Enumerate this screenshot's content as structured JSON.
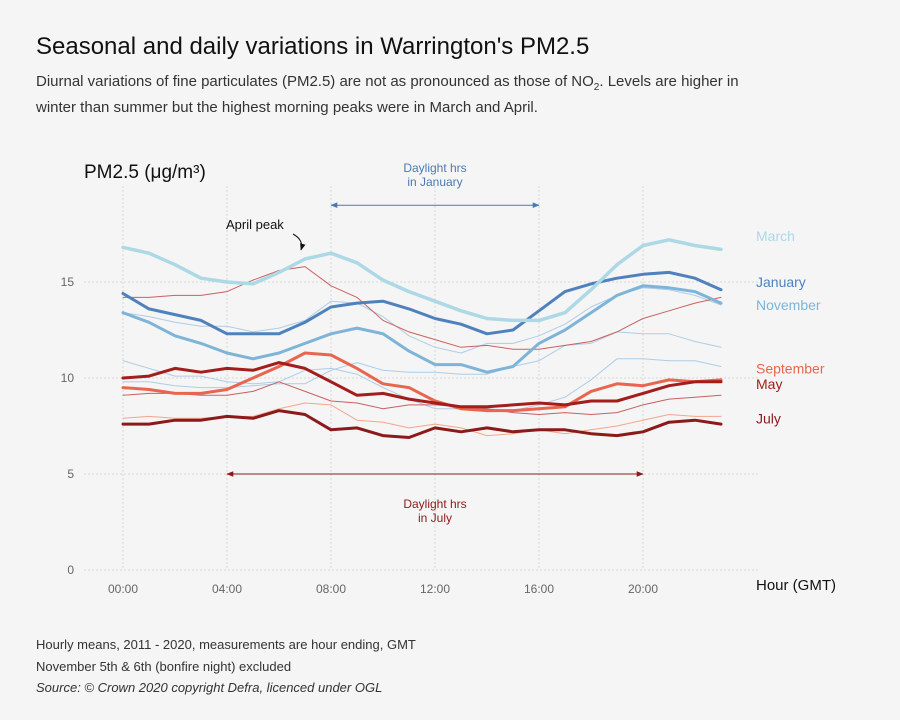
{
  "header": {
    "title": "Seasonal and daily variations in Warrington's PM2.5",
    "subtitle_part1": "Diurnal variations of fine particulates (PM2.5) are not as pronounced as those of NO",
    "subtitle_sub": "2",
    "subtitle_part2": ". Levels are higher in winter than summer but the highest morning peaks were in March and April."
  },
  "footer": {
    "line1": "Hourly means, 2011 - 2020, measurements are hour ending, GMT",
    "line2": "November 5th & 6th (bonfire night) excluded",
    "line3": "Source: © Crown 2020 copyright Defra,  licenced under OGL"
  },
  "chart_data": {
    "type": "line",
    "ylabel": "PM2.5 (μg/m³)",
    "xlabel": "Hour (GMT)",
    "ylim": [
      0,
      20
    ],
    "xlim": [
      -1.5,
      24.5
    ],
    "xticks": [
      0,
      4,
      8,
      12,
      16,
      20
    ],
    "xtick_labels": [
      "00:00",
      "04:00",
      "08:00",
      "12:00",
      "16:00",
      "20:00"
    ],
    "yticks": [
      0,
      5,
      10,
      15
    ],
    "grid": true,
    "x": [
      0,
      1,
      2,
      3,
      4,
      5,
      6,
      7,
      8,
      9,
      10,
      11,
      12,
      13,
      14,
      15,
      16,
      17,
      18,
      19,
      20,
      21,
      22,
      23
    ],
    "series": [
      {
        "name": "",
        "color": "#aecde6",
        "width": 1,
        "values": [
          13.4,
          13.2,
          12.9,
          12.7,
          12.7,
          12.4,
          12.6,
          13.0,
          14.0,
          13.9,
          13.2,
          12.2,
          11.6,
          11.3,
          11.8,
          11.8,
          12.2,
          12.8,
          13.7,
          14.3,
          14.7,
          14.6,
          14.3,
          13.8
        ]
      },
      {
        "name": "",
        "color": "#aecde6",
        "width": 1,
        "values": [
          9.8,
          9.8,
          9.6,
          9.5,
          9.5,
          9.6,
          9.7,
          9.7,
          10.4,
          10.8,
          10.4,
          10.3,
          10.3,
          10.2,
          10.2,
          10.6,
          10.9,
          11.7,
          11.8,
          12.4,
          12.3,
          12.3,
          11.9,
          11.6
        ]
      },
      {
        "name": "",
        "color": "#aecde6",
        "width": 1,
        "values": [
          10.9,
          10.5,
          10.1,
          10.1,
          9.8,
          9.7,
          9.8,
          10.4,
          10.5,
          10.2,
          9.5,
          8.9,
          8.4,
          8.4,
          8.4,
          8.3,
          8.6,
          9.0,
          9.9,
          11.0,
          11.0,
          10.9,
          10.9,
          10.6
        ]
      },
      {
        "name": "",
        "color": "#c96060",
        "width": 1,
        "values": [
          14.2,
          14.2,
          14.3,
          14.3,
          14.5,
          15.1,
          15.6,
          15.8,
          14.8,
          14.2,
          13.0,
          12.4,
          12.0,
          11.6,
          11.7,
          11.5,
          11.5,
          11.7,
          11.9,
          12.4,
          13.1,
          13.5,
          13.9,
          14.2
        ]
      },
      {
        "name": "",
        "color": "#c96060",
        "width": 1,
        "values": [
          9.1,
          9.2,
          9.2,
          9.1,
          9.1,
          9.3,
          9.8,
          9.3,
          8.8,
          8.7,
          8.4,
          8.6,
          8.6,
          8.5,
          8.4,
          8.2,
          8.1,
          8.2,
          8.1,
          8.2,
          8.6,
          8.9,
          9.0,
          9.1
        ]
      },
      {
        "name": "",
        "color": "#f4a58c",
        "width": 1,
        "values": [
          7.9,
          8.0,
          7.9,
          7.9,
          8.0,
          8.0,
          8.4,
          8.7,
          8.6,
          7.8,
          7.7,
          7.4,
          7.6,
          7.4,
          7.0,
          7.1,
          7.3,
          7.1,
          7.3,
          7.5,
          7.8,
          8.1,
          8.0,
          8.0
        ]
      },
      {
        "name": "November",
        "color": "#7db4d8",
        "width": 3,
        "values": [
          13.4,
          12.9,
          12.2,
          11.8,
          11.3,
          11.0,
          11.3,
          11.8,
          12.3,
          12.6,
          12.3,
          11.4,
          10.7,
          10.7,
          10.3,
          10.6,
          11.8,
          12.5,
          13.4,
          14.3,
          14.8,
          14.7,
          14.5,
          13.9
        ]
      },
      {
        "name": "January",
        "color": "#4f81bd",
        "width": 3,
        "values": [
          14.4,
          13.6,
          13.3,
          13.0,
          12.3,
          12.3,
          12.3,
          12.9,
          13.7,
          13.9,
          14.0,
          13.6,
          13.1,
          12.8,
          12.3,
          12.5,
          13.5,
          14.5,
          14.9,
          15.2,
          15.4,
          15.5,
          15.2,
          14.6
        ]
      },
      {
        "name": "March",
        "color": "#add8e6",
        "width": 3.5,
        "values": [
          16.8,
          16.5,
          15.9,
          15.2,
          15.0,
          14.9,
          15.5,
          16.2,
          16.5,
          16.0,
          15.1,
          14.5,
          14.0,
          13.5,
          13.1,
          13.0,
          13.0,
          13.4,
          14.6,
          15.9,
          16.9,
          17.2,
          16.9,
          16.7
        ]
      },
      {
        "name": "September",
        "color": "#e8664f",
        "width": 3,
        "values": [
          9.5,
          9.4,
          9.2,
          9.2,
          9.4,
          10.0,
          10.6,
          11.3,
          11.2,
          10.5,
          9.7,
          9.5,
          8.8,
          8.4,
          8.3,
          8.3,
          8.4,
          8.5,
          9.3,
          9.7,
          9.6,
          9.9,
          9.8,
          9.9
        ]
      },
      {
        "name": "May",
        "color": "#a31d1d",
        "width": 3,
        "values": [
          10.0,
          10.1,
          10.5,
          10.3,
          10.5,
          10.4,
          10.8,
          10.5,
          9.8,
          9.1,
          9.2,
          8.9,
          8.7,
          8.5,
          8.5,
          8.6,
          8.7,
          8.6,
          8.8,
          8.8,
          9.2,
          9.6,
          9.8,
          9.8
        ]
      },
      {
        "name": "July",
        "color": "#8b1a1a",
        "width": 3,
        "values": [
          7.6,
          7.6,
          7.8,
          7.8,
          8.0,
          7.9,
          8.3,
          8.1,
          7.3,
          7.4,
          7.0,
          6.9,
          7.4,
          7.2,
          7.4,
          7.2,
          7.3,
          7.3,
          7.1,
          7.0,
          7.2,
          7.7,
          7.8,
          7.6
        ]
      }
    ],
    "legend": [
      {
        "label": "March",
        "color": "#add8e6",
        "level": 17.4
      },
      {
        "label": "January",
        "color": "#4f81bd",
        "level": 15.0
      },
      {
        "label": "November",
        "color": "#7db4d8",
        "level": 13.8
      },
      {
        "label": "September",
        "color": "#e8664f",
        "level": 10.5
      },
      {
        "label": "May",
        "color": "#a31d1d",
        "level": 9.7
      },
      {
        "label": "July",
        "color": "#8b1a1a",
        "level": 7.9
      }
    ],
    "annotations": [
      {
        "name": "april-peak",
        "text": "April peak",
        "x": 5.9,
        "y": 18.0,
        "arrow_to": [
          7.9,
          16.5
        ]
      },
      {
        "name": "daylight-january",
        "text_line1": "Daylight hrs",
        "text_line2": "in January",
        "x_start": 8,
        "x_end": 16,
        "y": 19.0,
        "color": "#4a7ab5"
      },
      {
        "name": "daylight-july",
        "text_line1": "Daylight hrs",
        "text_line2": "in July",
        "x_start": 4,
        "x_end": 20,
        "y": 5.0,
        "color": "#8b1a1a"
      }
    ]
  }
}
